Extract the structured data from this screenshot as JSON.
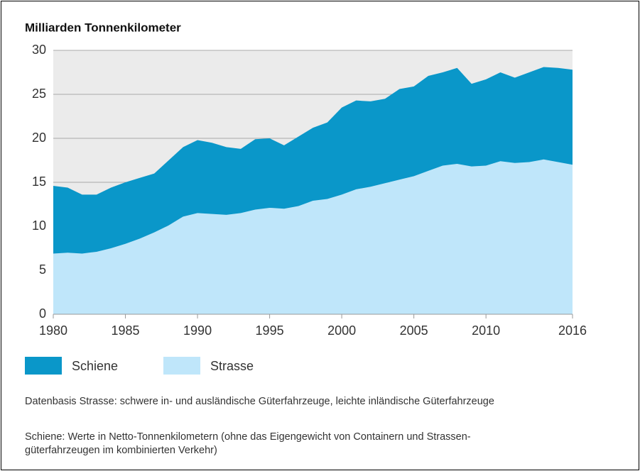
{
  "chart_data": {
    "type": "stacked_area",
    "title": "Milliarden Tonnenkilometer",
    "x": [
      1980,
      1981,
      1982,
      1983,
      1984,
      1985,
      1986,
      1987,
      1988,
      1989,
      1990,
      1991,
      1992,
      1993,
      1994,
      1995,
      1996,
      1997,
      1998,
      1999,
      2000,
      2001,
      2002,
      2003,
      2004,
      2005,
      2006,
      2007,
      2008,
      2009,
      2010,
      2011,
      2012,
      2013,
      2014,
      2015,
      2016
    ],
    "series": [
      {
        "name": "Strasse",
        "color": "#bfe6fa",
        "values": [
          6.9,
          7.0,
          6.9,
          7.1,
          7.5,
          8.0,
          8.6,
          9.3,
          10.1,
          11.1,
          11.5,
          11.4,
          11.3,
          11.5,
          11.9,
          12.1,
          12.0,
          12.3,
          12.9,
          13.1,
          13.6,
          14.2,
          14.5,
          14.9,
          15.3,
          15.7,
          16.3,
          16.9,
          17.1,
          16.8,
          16.9,
          17.4,
          17.2,
          17.3,
          17.6,
          17.3,
          17.0
        ]
      },
      {
        "name": "Schiene",
        "color": "#0a97c9",
        "values": [
          7.7,
          7.4,
          6.7,
          6.5,
          6.9,
          7.0,
          6.9,
          6.7,
          7.4,
          7.9,
          8.3,
          8.1,
          7.7,
          7.3,
          8.0,
          7.9,
          7.2,
          7.9,
          8.3,
          8.7,
          9.9,
          10.1,
          9.7,
          9.6,
          10.3,
          10.2,
          10.8,
          10.6,
          10.9,
          9.4,
          9.8,
          10.1,
          9.7,
          10.2,
          10.5,
          10.7,
          10.8
        ]
      }
    ],
    "xlim": [
      1980,
      2016
    ],
    "xticks": [
      1980,
      1985,
      1990,
      1995,
      2000,
      2005,
      2010,
      2016
    ],
    "ylim": [
      0,
      30
    ],
    "yticks": [
      0,
      5,
      10,
      15,
      20,
      25,
      30
    ],
    "grid": true,
    "notes": [
      "Datenbasis Strasse: schwere in- und ausländische Güterfahrzeuge, leichte inländische Güterfahrzeuge",
      "Schiene: Werte in Netto-Tonnenkilometern (ohne das Eigengewicht von Containern und Strassen-güterfahrzeugen im kombinierten Verkehr)"
    ]
  }
}
